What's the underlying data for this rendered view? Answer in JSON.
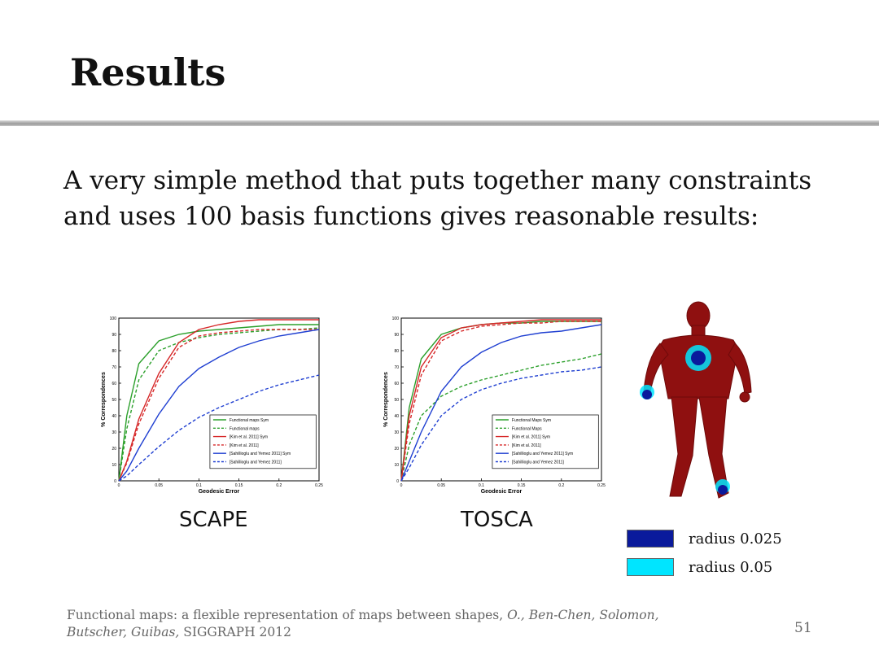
{
  "slide": {
    "title": "Results",
    "body": "A very simple method that puts together many constraints and uses 100 basis functions gives reasonable results:",
    "page_number": "51"
  },
  "citation": {
    "title": "Functional maps: a flexible representation of maps between shapes,",
    "authors": "O., Ben-Chen, Solomon, Butscher, Guibas,",
    "venue": "SIGGRAPH 2012"
  },
  "legend_right": [
    {
      "label": "radius 0.025",
      "color": "#0a1a9c"
    },
    {
      "label": "radius 0.05",
      "color": "#00e5ff"
    }
  ],
  "chart_data": [
    {
      "type": "line",
      "caption": "SCAPE",
      "xlabel": "Geodesic Error",
      "ylabel": "% Correspondences",
      "xlim": [
        0,
        0.25
      ],
      "ylim": [
        0,
        100
      ],
      "xticks": [
        "0",
        "0.05",
        "0.1",
        "0.15",
        "0.2",
        "0.25"
      ],
      "yticks": [
        "0",
        "10",
        "20",
        "30",
        "40",
        "50",
        "60",
        "70",
        "80",
        "90",
        "100"
      ],
      "legend_position": "lower-right",
      "x": [
        0,
        0.01,
        0.025,
        0.05,
        0.075,
        0.1,
        0.125,
        0.15,
        0.175,
        0.2,
        0.225,
        0.25
      ],
      "series": [
        {
          "name": "Functional maps Sym",
          "color": "#2ca02c",
          "dash": "solid",
          "values": [
            0,
            40,
            72,
            86,
            90,
            92,
            93,
            94,
            95,
            96,
            96,
            96
          ]
        },
        {
          "name": "Functional maps",
          "color": "#2ca02c",
          "dash": "dashed",
          "values": [
            0,
            32,
            62,
            80,
            85,
            88,
            90,
            91,
            92,
            93,
            93,
            94
          ]
        },
        {
          "name": "[Kim et al. 2011] Sym",
          "color": "#d62728",
          "dash": "solid",
          "values": [
            0,
            12,
            38,
            66,
            85,
            93,
            96,
            98,
            99,
            99,
            99,
            99
          ]
        },
        {
          "name": "[Kim et al. 2011]",
          "color": "#d62728",
          "dash": "dashed",
          "values": [
            0,
            11,
            35,
            63,
            82,
            89,
            91,
            92,
            93,
            93,
            93,
            93
          ]
        },
        {
          "name": "[Sahillioglu and Yemez 2011] Sym",
          "color": "#1f3fd1",
          "dash": "solid",
          "values": [
            0,
            6,
            20,
            41,
            58,
            69,
            76,
            82,
            86,
            89,
            91,
            93
          ]
        },
        {
          "name": "[Sahillioglu and Yemez 2011]",
          "color": "#1f3fd1",
          "dash": "dashed",
          "values": [
            0,
            3,
            10,
            21,
            31,
            39,
            45,
            50,
            55,
            59,
            62,
            65
          ]
        }
      ]
    },
    {
      "type": "line",
      "caption": "TOSCA",
      "xlabel": "Geodesic Error",
      "ylabel": "% Correspondences",
      "xlim": [
        0,
        0.25
      ],
      "ylim": [
        0,
        100
      ],
      "xticks": [
        "0",
        "0.05",
        "0.1",
        "0.15",
        "0.2",
        "0.25"
      ],
      "yticks": [
        "0",
        "10",
        "20",
        "30",
        "40",
        "50",
        "60",
        "70",
        "80",
        "90",
        "100"
      ],
      "legend_position": "lower-right",
      "x": [
        0,
        0.01,
        0.025,
        0.05,
        0.075,
        0.1,
        0.125,
        0.15,
        0.175,
        0.2,
        0.225,
        0.25
      ],
      "series": [
        {
          "name": "Functional Maps Sym",
          "color": "#2ca02c",
          "dash": "solid",
          "values": [
            0,
            45,
            75,
            90,
            94,
            96,
            97,
            97,
            98,
            98,
            98,
            98
          ]
        },
        {
          "name": "Functional Maps",
          "color": "#2ca02c",
          "dash": "dashed",
          "values": [
            0,
            22,
            40,
            52,
            58,
            62,
            65,
            68,
            71,
            73,
            75,
            78
          ]
        },
        {
          "name": "[Kim et al. 2011] Sym",
          "color": "#d62728",
          "dash": "solid",
          "values": [
            0,
            40,
            70,
            88,
            94,
            96,
            97,
            98,
            99,
            99,
            99,
            99
          ]
        },
        {
          "name": "[Kim et al. 2011]",
          "color": "#d62728",
          "dash": "dashed",
          "values": [
            0,
            35,
            65,
            86,
            92,
            95,
            96,
            97,
            97,
            98,
            98,
            98
          ]
        },
        {
          "name": "[Sahillioglu and Yemez 2011] Sym",
          "color": "#1f3fd1",
          "dash": "solid",
          "values": [
            0,
            12,
            30,
            55,
            70,
            79,
            85,
            89,
            91,
            92,
            94,
            96
          ]
        },
        {
          "name": "[Sahillioglu and Yemez 2011]",
          "color": "#1f3fd1",
          "dash": "dashed",
          "values": [
            0,
            8,
            22,
            40,
            50,
            56,
            60,
            63,
            65,
            67,
            68,
            70
          ]
        }
      ]
    }
  ]
}
